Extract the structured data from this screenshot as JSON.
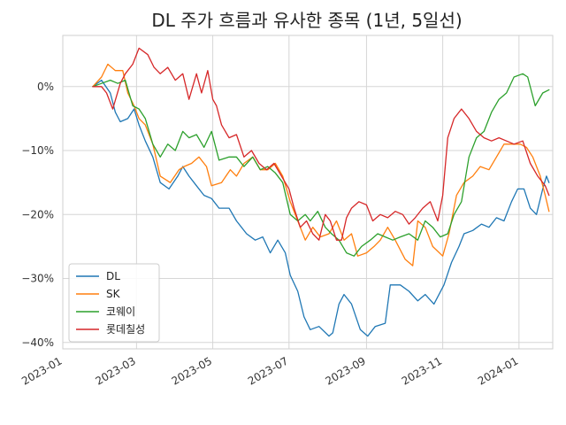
{
  "chart_data": {
    "type": "line",
    "title": "DL 주가 흐름과 유사한 종목 (1년, 5일선)",
    "xlabel": "",
    "ylabel": "",
    "x_ticks": [
      "2023-01",
      "2023-03",
      "2023-05",
      "2023-07",
      "2023-09",
      "2023-11",
      "2024-01"
    ],
    "y_ticks": [
      {
        "value": 0,
        "label": "0%"
      },
      {
        "value": -10,
        "label": "−10%"
      },
      {
        "value": -20,
        "label": "−20%"
      },
      {
        "value": -30,
        "label": "−30%"
      },
      {
        "value": -40,
        "label": "−40%"
      }
    ],
    "xlim": [
      "2023-01-01",
      "2024-01-28"
    ],
    "ylim": [
      -41,
      8
    ],
    "grid": true,
    "legend_position": "lower-left",
    "series": [
      {
        "name": "DL",
        "color": "#1f77b4",
        "points": [
          [
            "2023-01-25",
            0
          ],
          [
            "2023-02-01",
            1
          ],
          [
            "2023-02-08",
            -1
          ],
          [
            "2023-02-12",
            -4
          ],
          [
            "2023-02-16",
            -5.5
          ],
          [
            "2023-02-22",
            -5
          ],
          [
            "2023-02-27",
            -3.5
          ],
          [
            "2023-03-03",
            -6
          ],
          [
            "2023-03-08",
            -8.5
          ],
          [
            "2023-03-14",
            -11
          ],
          [
            "2023-03-20",
            -15
          ],
          [
            "2023-03-27",
            -16
          ],
          [
            "2023-04-03",
            -14
          ],
          [
            "2023-04-07",
            -12.5
          ],
          [
            "2023-04-12",
            -14
          ],
          [
            "2023-04-18",
            -15.5
          ],
          [
            "2023-04-24",
            -17
          ],
          [
            "2023-04-30",
            -17.5
          ],
          [
            "2023-05-06",
            -19
          ],
          [
            "2023-05-14",
            -19
          ],
          [
            "2023-05-20",
            -21
          ],
          [
            "2023-05-28",
            -23
          ],
          [
            "2023-06-04",
            -24
          ],
          [
            "2023-06-10",
            -23.5
          ],
          [
            "2023-06-16",
            -26
          ],
          [
            "2023-06-22",
            -24
          ],
          [
            "2023-06-28",
            -26
          ],
          [
            "2023-07-02",
            -29.5
          ],
          [
            "2023-07-08",
            -32
          ],
          [
            "2023-07-13",
            -36
          ],
          [
            "2023-07-18",
            -38
          ],
          [
            "2023-07-25",
            -37.5
          ],
          [
            "2023-08-02",
            -39
          ],
          [
            "2023-08-05",
            -38.5
          ],
          [
            "2023-08-10",
            -34
          ],
          [
            "2023-08-14",
            -32.5
          ],
          [
            "2023-08-20",
            -34
          ],
          [
            "2023-08-27",
            -38
          ],
          [
            "2023-09-02",
            -39
          ],
          [
            "2023-09-08",
            -37.5
          ],
          [
            "2023-09-16",
            -37
          ],
          [
            "2023-09-20",
            -31
          ],
          [
            "2023-09-28",
            -31
          ],
          [
            "2023-10-05",
            -32
          ],
          [
            "2023-10-12",
            -33.5
          ],
          [
            "2023-10-18",
            -32.5
          ],
          [
            "2023-10-25",
            -34
          ],
          [
            "2023-11-02",
            -31
          ],
          [
            "2023-11-08",
            -27.5
          ],
          [
            "2023-11-14",
            -25
          ],
          [
            "2023-11-18",
            -23
          ],
          [
            "2023-11-25",
            -22.5
          ],
          [
            "2023-12-02",
            -21.5
          ],
          [
            "2023-12-08",
            -22
          ],
          [
            "2023-12-14",
            -20.5
          ],
          [
            "2023-12-20",
            -21
          ],
          [
            "2023-12-26",
            -18
          ],
          [
            "2023-12-31",
            -16
          ],
          [
            "2024-01-05",
            -16
          ],
          [
            "2024-01-10",
            -19
          ],
          [
            "2024-01-15",
            -20
          ],
          [
            "2024-01-20",
            -16
          ],
          [
            "2024-01-23",
            -14
          ],
          [
            "2024-01-25",
            -15
          ]
        ]
      },
      {
        "name": "SK",
        "color": "#ff7f0e",
        "points": [
          [
            "2023-01-25",
            0
          ],
          [
            "2023-02-01",
            1.5
          ],
          [
            "2023-02-06",
            3.5
          ],
          [
            "2023-02-12",
            2.5
          ],
          [
            "2023-02-18",
            2.5
          ],
          [
            "2023-02-22",
            -1
          ],
          [
            "2023-02-27",
            -3
          ],
          [
            "2023-03-03",
            -5
          ],
          [
            "2023-03-08",
            -6
          ],
          [
            "2023-03-14",
            -9
          ],
          [
            "2023-03-20",
            -14
          ],
          [
            "2023-03-28",
            -15
          ],
          [
            "2023-04-04",
            -13
          ],
          [
            "2023-04-08",
            -12.5
          ],
          [
            "2023-04-14",
            -12
          ],
          [
            "2023-04-20",
            -11
          ],
          [
            "2023-04-26",
            -12.5
          ],
          [
            "2023-04-30",
            -15.5
          ],
          [
            "2023-05-08",
            -15
          ],
          [
            "2023-05-15",
            -13
          ],
          [
            "2023-05-20",
            -14
          ],
          [
            "2023-05-26",
            -12
          ],
          [
            "2023-06-02",
            -11
          ],
          [
            "2023-06-08",
            -13
          ],
          [
            "2023-06-14",
            -13
          ],
          [
            "2023-06-20",
            -12
          ],
          [
            "2023-06-26",
            -14
          ],
          [
            "2023-07-02",
            -18
          ],
          [
            "2023-07-08",
            -21
          ],
          [
            "2023-07-14",
            -24
          ],
          [
            "2023-07-20",
            -22
          ],
          [
            "2023-07-26",
            -23.5
          ],
          [
            "2023-08-02",
            -23
          ],
          [
            "2023-08-08",
            -21
          ],
          [
            "2023-08-14",
            -24
          ],
          [
            "2023-08-20",
            -23
          ],
          [
            "2023-08-25",
            -26.5
          ],
          [
            "2023-09-01",
            -26
          ],
          [
            "2023-09-07",
            -25
          ],
          [
            "2023-09-12",
            -24
          ],
          [
            "2023-09-18",
            -22
          ],
          [
            "2023-09-24",
            -24
          ],
          [
            "2023-10-02",
            -27
          ],
          [
            "2023-10-08",
            -28
          ],
          [
            "2023-10-12",
            -21
          ],
          [
            "2023-10-18",
            -22
          ],
          [
            "2023-10-24",
            -25
          ],
          [
            "2023-11-01",
            -26.5
          ],
          [
            "2023-11-06",
            -23
          ],
          [
            "2023-11-12",
            -17
          ],
          [
            "2023-11-18",
            -15
          ],
          [
            "2023-11-25",
            -14
          ],
          [
            "2023-12-01",
            -12.5
          ],
          [
            "2023-12-08",
            -13
          ],
          [
            "2023-12-14",
            -11
          ],
          [
            "2023-12-20",
            -9
          ],
          [
            "2023-12-26",
            -9
          ],
          [
            "2024-01-02",
            -9
          ],
          [
            "2024-01-07",
            -9.5
          ],
          [
            "2024-01-12",
            -11
          ],
          [
            "2024-01-18",
            -14
          ],
          [
            "2024-01-22",
            -17
          ],
          [
            "2024-01-25",
            -19.5
          ]
        ]
      },
      {
        "name": "코웨이",
        "color": "#2ca02c",
        "points": [
          [
            "2023-01-25",
            0
          ],
          [
            "2023-02-01",
            0.5
          ],
          [
            "2023-02-08",
            1
          ],
          [
            "2023-02-14",
            0.5
          ],
          [
            "2023-02-20",
            1
          ],
          [
            "2023-02-26",
            -3
          ],
          [
            "2023-03-03",
            -3.5
          ],
          [
            "2023-03-08",
            -5
          ],
          [
            "2023-03-14",
            -9
          ],
          [
            "2023-03-20",
            -11
          ],
          [
            "2023-03-26",
            -9
          ],
          [
            "2023-04-01",
            -10
          ],
          [
            "2023-04-07",
            -7
          ],
          [
            "2023-04-12",
            -8
          ],
          [
            "2023-04-18",
            -7.5
          ],
          [
            "2023-04-24",
            -9.5
          ],
          [
            "2023-04-30",
            -7
          ],
          [
            "2023-05-06",
            -11.5
          ],
          [
            "2023-05-14",
            -11
          ],
          [
            "2023-05-20",
            -11
          ],
          [
            "2023-05-26",
            -12.5
          ],
          [
            "2023-06-02",
            -11
          ],
          [
            "2023-06-08",
            -13
          ],
          [
            "2023-06-14",
            -12.5
          ],
          [
            "2023-06-20",
            -13.5
          ],
          [
            "2023-06-26",
            -15
          ],
          [
            "2023-07-02",
            -20
          ],
          [
            "2023-07-08",
            -21
          ],
          [
            "2023-07-14",
            -20
          ],
          [
            "2023-07-18",
            -21
          ],
          [
            "2023-07-24",
            -19.5
          ],
          [
            "2023-07-30",
            -22
          ],
          [
            "2023-08-04",
            -23
          ],
          [
            "2023-08-10",
            -24
          ],
          [
            "2023-08-16",
            -26
          ],
          [
            "2023-08-22",
            -26.5
          ],
          [
            "2023-08-28",
            -25
          ],
          [
            "2023-09-04",
            -24
          ],
          [
            "2023-09-10",
            -23
          ],
          [
            "2023-09-16",
            -23.5
          ],
          [
            "2023-09-22",
            -24
          ],
          [
            "2023-09-28",
            -23.5
          ],
          [
            "2023-10-05",
            -23
          ],
          [
            "2023-10-12",
            -24
          ],
          [
            "2023-10-18",
            -21
          ],
          [
            "2023-10-24",
            -22
          ],
          [
            "2023-10-30",
            -23.5
          ],
          [
            "2023-11-05",
            -23
          ],
          [
            "2023-11-10",
            -20
          ],
          [
            "2023-11-16",
            -18
          ],
          [
            "2023-11-22",
            -11
          ],
          [
            "2023-11-28",
            -8
          ],
          [
            "2023-12-04",
            -7
          ],
          [
            "2023-12-10",
            -4
          ],
          [
            "2023-12-16",
            -2
          ],
          [
            "2023-12-22",
            -1
          ],
          [
            "2023-12-28",
            1.5
          ],
          [
            "2024-01-04",
            2
          ],
          [
            "2024-01-08",
            1.5
          ],
          [
            "2024-01-14",
            -3
          ],
          [
            "2024-01-20",
            -1
          ],
          [
            "2024-01-25",
            -0.5
          ]
        ]
      },
      {
        "name": "롯데칠성",
        "color": "#d62728",
        "points": [
          [
            "2023-01-25",
            0
          ],
          [
            "2023-02-01",
            0
          ],
          [
            "2023-02-05",
            -1
          ],
          [
            "2023-02-10",
            -3.5
          ],
          [
            "2023-02-16",
            0.5
          ],
          [
            "2023-02-20",
            2
          ],
          [
            "2023-02-26",
            3.5
          ],
          [
            "2023-03-03",
            6
          ],
          [
            "2023-03-10",
            5
          ],
          [
            "2023-03-15",
            3
          ],
          [
            "2023-03-20",
            2
          ],
          [
            "2023-03-26",
            3
          ],
          [
            "2023-04-01",
            1
          ],
          [
            "2023-04-07",
            2
          ],
          [
            "2023-04-12",
            -2
          ],
          [
            "2023-04-18",
            2
          ],
          [
            "2023-04-22",
            -1
          ],
          [
            "2023-04-27",
            2.5
          ],
          [
            "2023-05-01",
            -2
          ],
          [
            "2023-05-04",
            -3
          ],
          [
            "2023-05-08",
            -6
          ],
          [
            "2023-05-14",
            -8
          ],
          [
            "2023-05-20",
            -7.5
          ],
          [
            "2023-05-26",
            -11
          ],
          [
            "2023-06-01",
            -10
          ],
          [
            "2023-06-07",
            -12
          ],
          [
            "2023-06-13",
            -13
          ],
          [
            "2023-06-19",
            -12
          ],
          [
            "2023-06-25",
            -14
          ],
          [
            "2023-07-01",
            -16
          ],
          [
            "2023-07-05",
            -19
          ],
          [
            "2023-07-10",
            -22
          ],
          [
            "2023-07-15",
            -21
          ],
          [
            "2023-07-20",
            -23
          ],
          [
            "2023-07-25",
            -24
          ],
          [
            "2023-07-30",
            -20
          ],
          [
            "2023-08-03",
            -21
          ],
          [
            "2023-08-08",
            -24
          ],
          [
            "2023-08-12",
            -24
          ],
          [
            "2023-08-16",
            -20.5
          ],
          [
            "2023-08-20",
            -19
          ],
          [
            "2023-08-26",
            -18
          ],
          [
            "2023-09-01",
            -18.5
          ],
          [
            "2023-09-06",
            -21
          ],
          [
            "2023-09-12",
            -20
          ],
          [
            "2023-09-18",
            -20.5
          ],
          [
            "2023-09-24",
            -19.5
          ],
          [
            "2023-09-30",
            -20
          ],
          [
            "2023-10-05",
            -21.5
          ],
          [
            "2023-10-10",
            -20.5
          ],
          [
            "2023-10-16",
            -19
          ],
          [
            "2023-10-22",
            -18
          ],
          [
            "2023-10-28",
            -21
          ],
          [
            "2023-11-01",
            -17
          ],
          [
            "2023-11-05",
            -8
          ],
          [
            "2023-11-10",
            -5
          ],
          [
            "2023-11-16",
            -3.5
          ],
          [
            "2023-11-22",
            -5
          ],
          [
            "2023-11-28",
            -7
          ],
          [
            "2023-12-04",
            -8
          ],
          [
            "2023-12-10",
            -8.5
          ],
          [
            "2023-12-16",
            -8
          ],
          [
            "2023-12-22",
            -8.5
          ],
          [
            "2023-12-28",
            -9
          ],
          [
            "2024-01-04",
            -8.5
          ],
          [
            "2024-01-10",
            -12
          ],
          [
            "2024-01-16",
            -14
          ],
          [
            "2024-01-22",
            -15.5
          ],
          [
            "2024-01-25",
            -17
          ]
        ]
      }
    ]
  }
}
